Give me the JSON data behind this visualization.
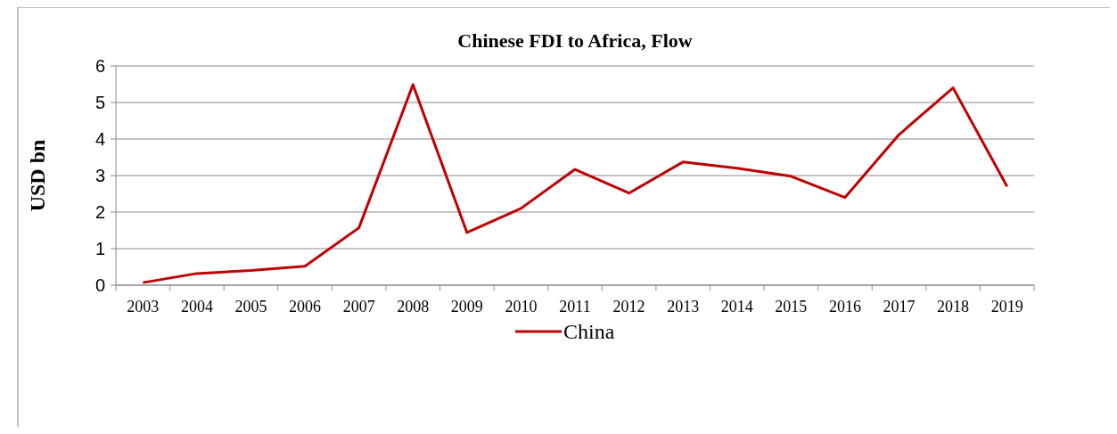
{
  "chart_data": {
    "type": "line",
    "title": "Chinese FDI to Africa, Flow",
    "ylabel": "USD bn",
    "categories": [
      "2003",
      "2004",
      "2005",
      "2006",
      "2007",
      "2008",
      "2009",
      "2010",
      "2011",
      "2012",
      "2013",
      "2014",
      "2015",
      "2016",
      "2017",
      "2018",
      "2019"
    ],
    "series": [
      {
        "name": "China",
        "color": "#c00000",
        "values": [
          0.07,
          0.32,
          0.4,
          0.52,
          1.57,
          5.49,
          1.44,
          2.1,
          3.17,
          2.52,
          3.37,
          3.2,
          2.98,
          2.4,
          4.12,
          5.4,
          2.7
        ]
      }
    ],
    "ylim": [
      0,
      6
    ],
    "yticks": [
      0,
      1,
      2,
      3,
      4,
      5,
      6
    ],
    "grid": "y",
    "legend": "bottom",
    "marker": "none",
    "line_style": "solid"
  }
}
